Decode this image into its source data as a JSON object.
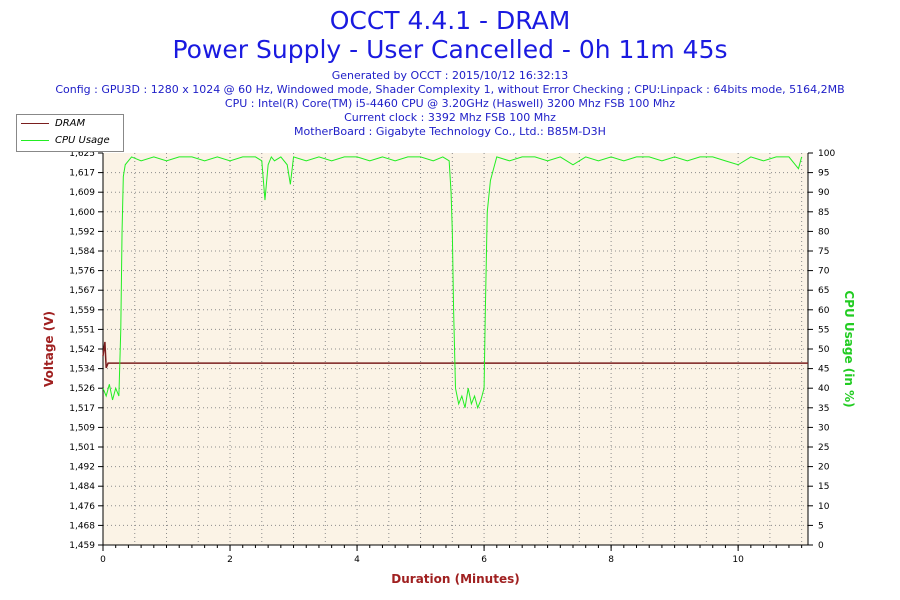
{
  "header": {
    "title_line1": "OCCT 4.4.1 - DRAM",
    "title_line2": "Power Supply - User Cancelled - 0h 11m 45s",
    "generated": "Generated by OCCT : 2015/10/12 16:32:13",
    "config": "Config : GPU3D : 1280 x 1024 @ 60 Hz, Windowed mode, Shader Complexity 1, without Error Checking ; CPU:Linpack : 64bits mode, 5164,2MB",
    "cpu": "CPU : Intel(R) Core(TM) i5-4460 CPU @ 3.20GHz (Haswell) 3200 Mhz FSB 100 Mhz",
    "clock": "Current clock : 3392 Mhz FSB 100 Mhz",
    "motherboard": "MotherBoard : Gigabyte Technology Co., Ltd.: B85M-D3H"
  },
  "colors": {
    "dram": "#7a1e1e",
    "cpu": "#22ee22",
    "plot_bg": "#fbf3e6",
    "grid": "#8c8c8c",
    "axis_left_label": "#a02020",
    "axis_right_label": "#22cc22",
    "axis_bottom_label": "#a02020"
  },
  "chart_data": {
    "type": "line",
    "xlabel": "Duration (Minutes)",
    "ylabel_left": "Voltage (V)",
    "ylabel_right": "CPU Usage (in %)",
    "xlim": [
      0,
      11.1
    ],
    "ylim_left": [
      1.459,
      1.625
    ],
    "ylim_right": [
      0,
      100
    ],
    "x_ticks": [
      0,
      2,
      4,
      6,
      8,
      10
    ],
    "y_ticks_left": [
      "1,625",
      "1,617",
      "1,609",
      "1,600",
      "1,592",
      "1,584",
      "1,576",
      "1,567",
      "1,559",
      "1,551",
      "1,542",
      "1,534",
      "1,526",
      "1,517",
      "1,509",
      "1,501",
      "1,492",
      "1,484",
      "1,476",
      "1,468",
      "1,459"
    ],
    "y_ticks_right": [
      100,
      95,
      90,
      85,
      80,
      75,
      70,
      65,
      60,
      55,
      50,
      45,
      40,
      35,
      30,
      25,
      20,
      15,
      10,
      5,
      0
    ],
    "legend_position": "top-left",
    "series": [
      {
        "name": "DRAM",
        "axis": "left",
        "x": [
          0,
          0.03,
          0.05,
          0.08,
          11.1
        ],
        "y": [
          1.539,
          1.545,
          1.534,
          1.536,
          1.536
        ]
      },
      {
        "name": "CPU Usage",
        "axis": "right",
        "x": [
          0,
          0.05,
          0.1,
          0.15,
          0.2,
          0.25,
          0.28,
          0.3,
          0.32,
          0.35,
          0.45,
          0.6,
          0.8,
          1.0,
          1.2,
          1.4,
          1.6,
          1.8,
          2.0,
          2.2,
          2.4,
          2.5,
          2.55,
          2.6,
          2.65,
          2.7,
          2.8,
          2.9,
          2.95,
          3.0,
          3.2,
          3.4,
          3.6,
          3.8,
          4.0,
          4.2,
          4.4,
          4.6,
          4.8,
          5.0,
          5.2,
          5.35,
          5.45,
          5.48,
          5.5,
          5.52,
          5.55,
          5.6,
          5.65,
          5.7,
          5.75,
          5.8,
          5.85,
          5.9,
          5.95,
          6.0,
          6.02,
          6.05,
          6.1,
          6.15,
          6.2,
          6.4,
          6.6,
          6.8,
          7.0,
          7.2,
          7.4,
          7.6,
          7.8,
          8.0,
          8.2,
          8.4,
          8.6,
          8.8,
          9.0,
          9.2,
          9.4,
          9.6,
          9.8,
          10.0,
          10.2,
          10.4,
          10.6,
          10.8,
          10.95,
          11.0
        ],
        "y": [
          40,
          38,
          41,
          37,
          40,
          38,
          55,
          80,
          94,
          97,
          99,
          98,
          99,
          98,
          99,
          99,
          98,
          99,
          98,
          99,
          99,
          98,
          88,
          97,
          99,
          98,
          99,
          97,
          92,
          99,
          98,
          99,
          98,
          99,
          99,
          98,
          99,
          98,
          99,
          99,
          98,
          99,
          98,
          90,
          80,
          60,
          40,
          36,
          38,
          35,
          40,
          36,
          38,
          35,
          37,
          40,
          60,
          85,
          93,
          96,
          99,
          98,
          99,
          99,
          98,
          99,
          97,
          99,
          98,
          99,
          98,
          99,
          99,
          98,
          99,
          98,
          99,
          99,
          98,
          97,
          99,
          98,
          99,
          99,
          96,
          99
        ]
      }
    ]
  }
}
